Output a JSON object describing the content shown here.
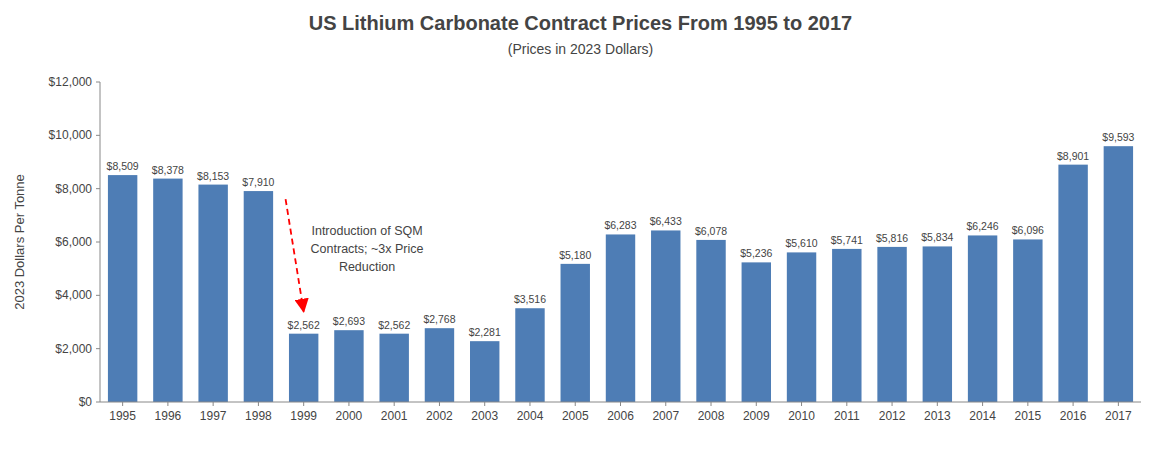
{
  "chart_data": {
    "type": "bar",
    "title": "US Lithium Carbonate Contract Prices From 1995 to 2017",
    "subtitle": "(Prices in 2023 Dollars)",
    "ylabel": "2023 Dollars Per Tonne",
    "categories": [
      "1995",
      "1996",
      "1997",
      "1998",
      "1999",
      "2000",
      "2001",
      "2002",
      "2003",
      "2004",
      "2005",
      "2006",
      "2007",
      "2008",
      "2009",
      "2010",
      "2011",
      "2012",
      "2013",
      "2014",
      "2015",
      "2016",
      "2017"
    ],
    "values": [
      8509,
      8378,
      8153,
      7910,
      2562,
      2693,
      2562,
      2768,
      2281,
      3516,
      5180,
      6283,
      6433,
      6078,
      5236,
      5610,
      5741,
      5816,
      5834,
      6246,
      6096,
      8901,
      9593
    ],
    "value_labels": [
      "$8,509",
      "$8,378",
      "$8,153",
      "$7,910",
      "$2,562",
      "$2,693",
      "$2,562",
      "$2,768",
      "$2,281",
      "$3,516",
      "$5,180",
      "$6,283",
      "$6,433",
      "$6,078",
      "$5,236",
      "$5,610",
      "$5,741",
      "$5,816",
      "$5,834",
      "$6,246",
      "$6,096",
      "$8,901",
      "$9,593"
    ],
    "data_labels": true,
    "color": "#4e7db5",
    "ylim": [
      0,
      12000
    ],
    "yticks": [
      {
        "value": 0,
        "label": "$0"
      },
      {
        "value": 2000,
        "label": "$2,000"
      },
      {
        "value": 4000,
        "label": "$4,000"
      },
      {
        "value": 6000,
        "label": "$6,000"
      },
      {
        "value": 8000,
        "label": "$8,000"
      },
      {
        "value": 10000,
        "label": "$10,000"
      },
      {
        "value": 12000,
        "label": "$12,000"
      }
    ],
    "grid": false,
    "annotation": "Introduction of SQM\nContracts; ~3x Price\nReduction"
  }
}
